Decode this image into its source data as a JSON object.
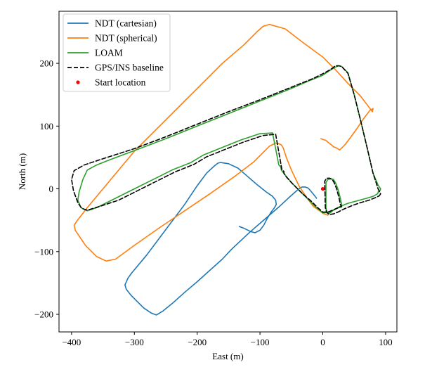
{
  "chart_data": {
    "type": "line",
    "title": "",
    "xlabel": "East (m)",
    "ylabel": "North (m)",
    "xlim": [
      -420,
      118
    ],
    "ylim": [
      -228,
      283
    ],
    "xticks": [
      -400,
      -300,
      -200,
      -100,
      0,
      100
    ],
    "yticks": [
      -200,
      -100,
      0,
      100,
      200
    ],
    "xtick_labels": [
      "−400",
      "−300",
      "−200",
      "−100",
      "0",
      "100"
    ],
    "ytick_labels": [
      "−200",
      "−100",
      "0",
      "100",
      "200"
    ],
    "grid": false,
    "legend_position": "top-left",
    "series": [
      {
        "name": "NDT (cartesian)",
        "color": "#1f77b4",
        "dash": "solid",
        "x": [
          -133,
          -125,
          -115,
          -108,
          -100,
          -94,
          -90,
          -83,
          -77,
          -74,
          -75,
          -80,
          -90,
          -105,
          -120,
          -135,
          -150,
          -163,
          -167,
          -172,
          -185,
          -200,
          -220,
          -250,
          -280,
          -305,
          -310,
          -315,
          -313,
          -305,
          -295,
          -285,
          -273,
          -265,
          -255,
          -240,
          -220,
          -200,
          -180,
          -160,
          -145,
          -130,
          -115,
          -100,
          -85,
          -70,
          -55,
          -45,
          -38,
          -33,
          -28,
          -23,
          -17,
          -13,
          -10
        ],
        "y": [
          -60,
          -63,
          -68,
          -70,
          -66,
          -58,
          -50,
          -38,
          -30,
          -25,
          -18,
          -12,
          -5,
          7,
          20,
          33,
          40,
          42,
          41,
          37,
          25,
          5,
          -25,
          -65,
          -105,
          -135,
          -142,
          -153,
          -160,
          -170,
          -180,
          -190,
          -198,
          -201,
          -195,
          -183,
          -165,
          -148,
          -130,
          -112,
          -96,
          -82,
          -68,
          -55,
          -42,
          -29,
          -15,
          -6,
          0,
          3,
          3,
          1,
          -6,
          -11,
          -15
        ]
      },
      {
        "name": "NDT (spherical)",
        "color": "#ff7f0e",
        "dash": "solid",
        "x": [
          -3,
          5,
          10,
          14,
          17,
          20,
          27,
          35,
          45,
          55,
          65,
          75,
          80,
          79,
          60,
          40,
          20,
          0,
          -30,
          -60,
          -85,
          -95,
          -105,
          -125,
          -160,
          -200,
          -250,
          -300,
          -350,
          -375,
          -392,
          -396,
          -394,
          -388,
          -378,
          -360,
          -345,
          -330,
          -300,
          -260,
          -220,
          -180,
          -140,
          -110,
          -95,
          -85,
          -75,
          -70,
          -66,
          -63,
          -58,
          -50,
          -38,
          -25,
          -15,
          -5,
          0,
          5,
          8
        ],
        "y": [
          80,
          77,
          73,
          70,
          67,
          66,
          62,
          70,
          83,
          97,
          112,
          125,
          128,
          123,
          148,
          168,
          190,
          210,
          232,
          255,
          262,
          259,
          250,
          230,
          200,
          160,
          110,
          60,
          0,
          -30,
          -52,
          -58,
          -66,
          -75,
          -90,
          -108,
          -115,
          -112,
          -90,
          -62,
          -35,
          -8,
          20,
          43,
          58,
          68,
          73,
          72,
          70,
          65,
          50,
          30,
          5,
          -15,
          -28,
          -35,
          -39,
          -41,
          -42
        ]
      },
      {
        "name": "LOAM",
        "color": "#2ca02c",
        "dash": "solid",
        "x": [
          90,
          87,
          80,
          70,
          55,
          40,
          28,
          18,
          12,
          9,
          7,
          5,
          5,
          8,
          13,
          17,
          20,
          24,
          28,
          30,
          30,
          25,
          15,
          8,
          0,
          -10,
          -20,
          -35,
          -50,
          -60,
          -66,
          -67,
          -70,
          -80,
          -100,
          -130,
          -160,
          -190,
          -210,
          -240,
          -270,
          -300,
          -330,
          -360,
          -375,
          -385,
          -390,
          -388,
          -382,
          -375,
          -360,
          -340,
          -300,
          -250,
          -200,
          -150,
          -100,
          -50,
          -20,
          0,
          10,
          20,
          25,
          30,
          40,
          50,
          60,
          70,
          80,
          88,
          92,
          91,
          88
        ],
        "y": [
          -3,
          -8,
          -12,
          -15,
          -19,
          -23,
          -28,
          -33,
          -38,
          -40,
          -38,
          -30,
          10,
          15,
          16,
          15,
          10,
          0,
          -15,
          -25,
          -29,
          -30,
          -35,
          -38,
          -38,
          -30,
          -20,
          -5,
          10,
          22,
          30,
          35,
          38,
          89,
          88,
          78,
          66,
          54,
          42,
          30,
          15,
          0,
          -15,
          -30,
          -35,
          -30,
          -18,
          -5,
          15,
          30,
          38,
          46,
          61,
          80,
          100,
          120,
          140,
          160,
          173,
          181,
          188,
          194,
          196,
          195,
          185,
          150,
          110,
          68,
          25,
          6,
          0,
          -3,
          -5
        ]
      },
      {
        "name": "GPS/INS baseline",
        "color": "#000000",
        "dash": "dashed",
        "x": [
          92,
          90,
          84,
          74,
          60,
          46,
          34,
          24,
          17,
          10,
          6,
          4,
          3,
          6,
          11,
          15,
          18,
          22,
          26,
          28,
          30,
          27,
          18,
          8,
          0,
          -8,
          -18,
          -32,
          -48,
          -58,
          -62,
          -62,
          -65,
          -75,
          -95,
          -125,
          -155,
          -185,
          -205,
          -235,
          -265,
          -295,
          -325,
          -355,
          -375,
          -384,
          -390,
          -397,
          -400,
          -396,
          -380,
          -350,
          -300,
          -250,
          -200,
          -150,
          -100,
          -50,
          -15,
          5,
          15,
          20,
          26,
          30,
          40,
          50,
          60,
          70,
          80,
          88,
          92
        ],
        "y": [
          -8,
          -11,
          -14,
          -18,
          -22,
          -27,
          -32,
          -37,
          -40,
          -41,
          -37,
          -30,
          12,
          17,
          17,
          15,
          10,
          0,
          -15,
          -25,
          -28,
          -29,
          -33,
          -37,
          -37,
          -30,
          -20,
          -8,
          8,
          19,
          25,
          28,
          30,
          87,
          85,
          75,
          63,
          51,
          39,
          27,
          12,
          -3,
          -18,
          -28,
          -34,
          -31,
          -22,
          -3,
          15,
          29,
          38,
          48,
          64,
          83,
          103,
          123,
          142,
          162,
          176,
          186,
          192,
          196,
          196,
          195,
          184,
          150,
          110,
          68,
          25,
          0,
          -8
        ]
      }
    ],
    "markers": [
      {
        "name": "Start location",
        "color": "#ff0000",
        "x": 0,
        "y": 0
      }
    ]
  }
}
